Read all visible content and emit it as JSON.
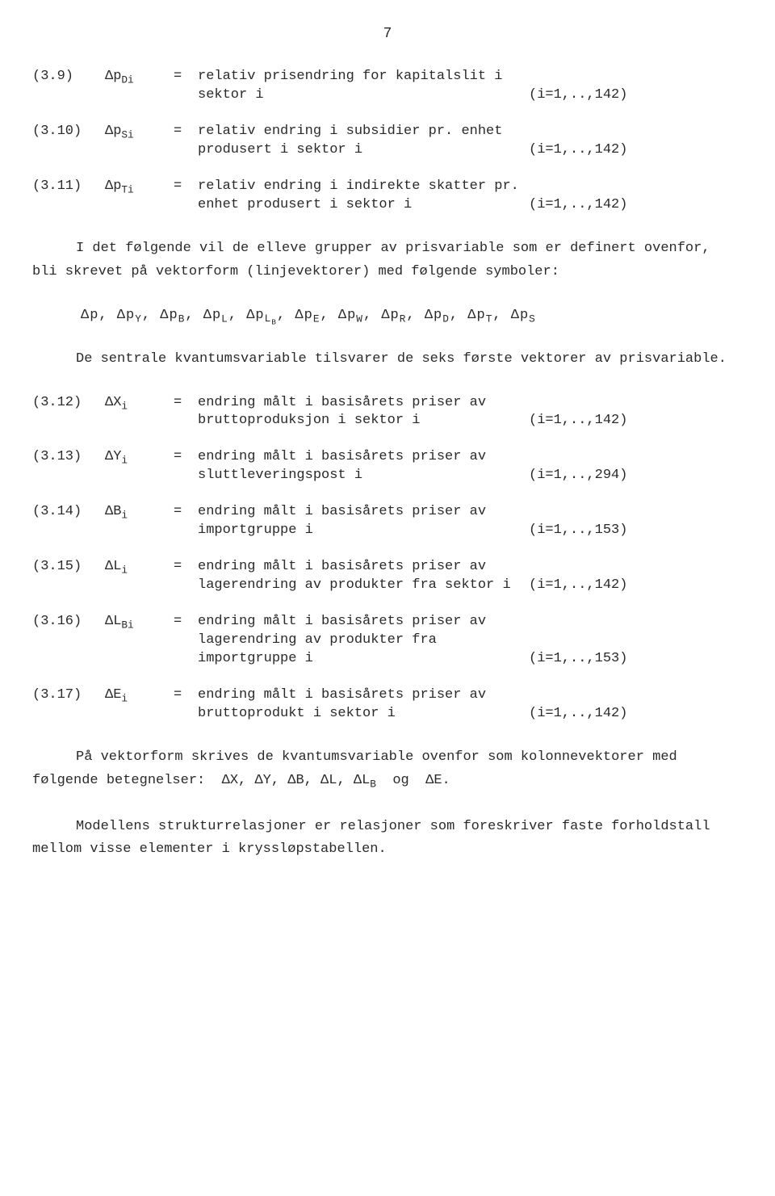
{
  "page_number": "7",
  "defs_top": [
    {
      "eqnum": "(3.9)",
      "symbol": "Δp<sub>Di</sub>",
      "desc": "relativ prisendring for kapitalslit i sektor i",
      "range": "(i=1,..,142)"
    },
    {
      "eqnum": "(3.10)",
      "symbol": "Δp<sub>Si</sub>",
      "desc": "relativ endring i subsidier pr. enhet produsert i sektor i",
      "range": "(i=1,..,142)"
    },
    {
      "eqnum": "(3.11)",
      "symbol": "Δp<sub>Ti</sub>",
      "desc": "relativ endring i indirekte skatter pr. enhet produsert i sektor i",
      "range": "(i=1,..,142)"
    }
  ],
  "para1": "I det følgende vil de elleve grupper av prisvariable som er definert ovenfor, bli skrevet på vektorform (linjevektorer) med følgende symboler:",
  "symbol_list": "Δp, Δp<sub>Y</sub>, Δp<sub>B</sub>, Δp<sub>L</sub>, Δp<sub>L<sub>B</sub></sub>, Δp<sub>E</sub>, Δp<sub>W</sub>, Δp<sub>R</sub>, Δp<sub>D</sub>, Δp<sub>T</sub>, Δp<sub>S</sub>",
  "para2": "De sentrale kvantumsvariable tilsvarer de seks første vektorer av prisvariable.",
  "defs_bottom": [
    {
      "eqnum": "(3.12)",
      "symbol": "ΔX<sub>i</sub>",
      "desc": "endring målt i basisårets priser av bruttoproduksjon i sektor i",
      "range": "(i=1,..,142)"
    },
    {
      "eqnum": "(3.13)",
      "symbol": "ΔY<sub>i</sub>",
      "desc": "endring målt i basisårets priser av sluttleveringspost i",
      "range": "(i=1,..,294)"
    },
    {
      "eqnum": "(3.14)",
      "symbol": "ΔB<sub>i</sub>",
      "desc": "endring målt i basisårets priser av importgruppe i",
      "range": "(i=1,..,153)"
    },
    {
      "eqnum": "(3.15)",
      "symbol": "ΔL<sub>i</sub>",
      "desc": "endring målt i basisårets priser av lagerendring av produkter fra sektor i",
      "range": "(i=1,..,142)"
    },
    {
      "eqnum": "(3.16)",
      "symbol": "ΔL<sub>Bi</sub>",
      "desc": "endring målt i basisårets priser av lagerendring av produkter fra importgruppe i",
      "range": "(i=1,..,153)"
    },
    {
      "eqnum": "(3.17)",
      "symbol": "ΔE<sub>i</sub>",
      "desc": "endring målt i basisårets priser av bruttoprodukt i sektor i",
      "range": "(i=1,..,142)"
    }
  ],
  "para3": "På vektorform skrives de kvantumsvariable ovenfor som kolonnevektorer med følgende betegnelser:&nbsp; ΔX,&nbsp;ΔY,&nbsp;ΔB,&nbsp;ΔL,&nbsp;ΔL<sub>B</sub>&nbsp; og &nbsp;ΔE.",
  "para4": "Modellens strukturrelasjoner er relasjoner som foreskriver faste forholdstall mellom visse elementer i kryssløpstabellen."
}
